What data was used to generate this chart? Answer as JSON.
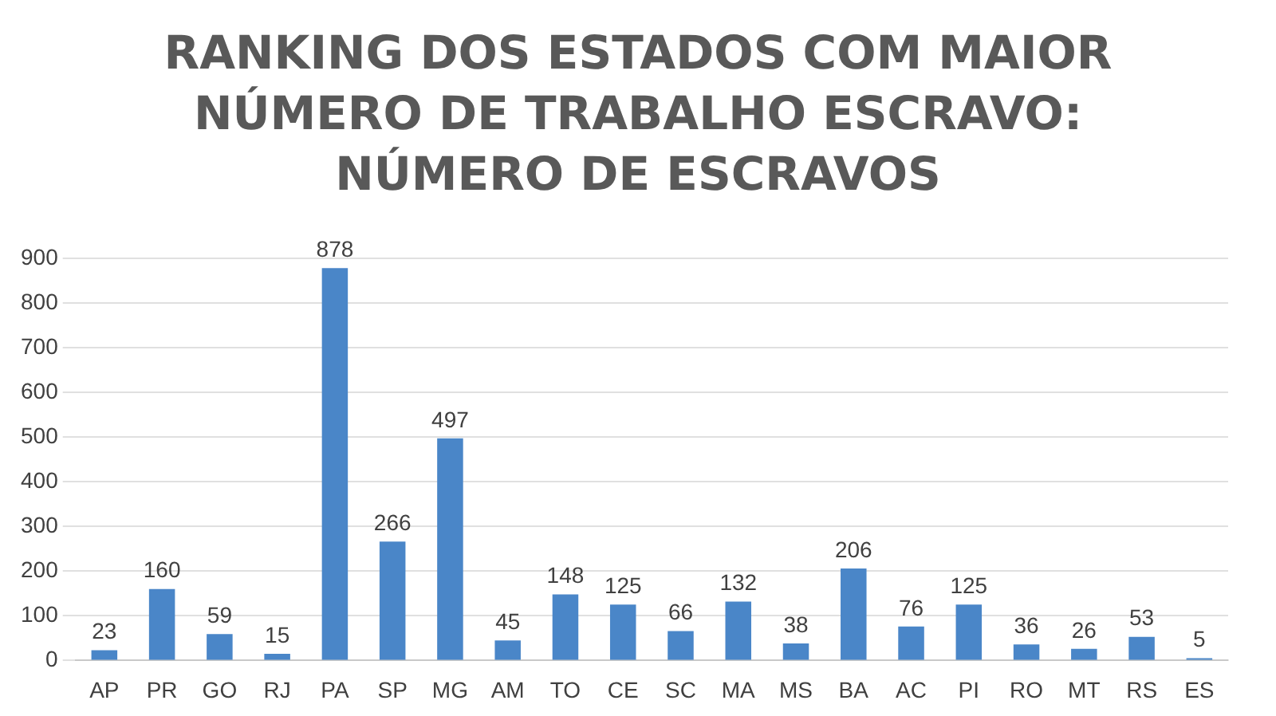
{
  "chart_data": {
    "type": "bar",
    "title": "RANKING DOS ESTADOS COM MAIOR\nNÚMERO DE TRABALHO ESCRAVO:\nNÚMERO DE ESCRAVOS",
    "categories": [
      "AP",
      "PR",
      "GO",
      "RJ",
      "PA",
      "SP",
      "MG",
      "AM",
      "TO",
      "CE",
      "SC",
      "MA",
      "MS",
      "BA",
      "AC",
      "PI",
      "RO",
      "MT",
      "RS",
      "ES"
    ],
    "values": [
      23,
      160,
      59,
      15,
      878,
      266,
      497,
      45,
      148,
      125,
      66,
      132,
      38,
      206,
      76,
      125,
      36,
      26,
      53,
      5
    ],
    "color": "#4a86c8",
    "ylim": [
      0,
      900
    ],
    "yticks": [
      0,
      100,
      200,
      300,
      400,
      500,
      600,
      700,
      800,
      900
    ],
    "grid": "y",
    "data_labels": true,
    "legend": false
  }
}
